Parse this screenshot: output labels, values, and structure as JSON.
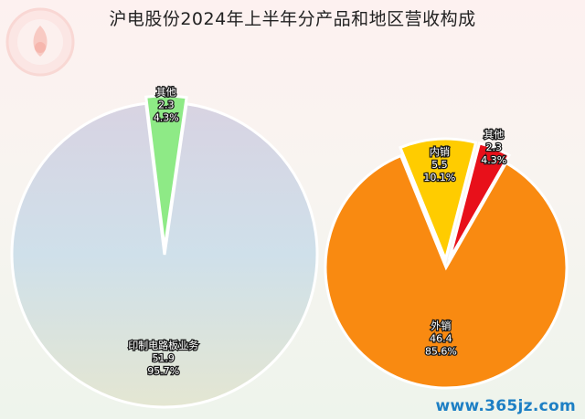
{
  "title": "沪电股份2024年上半年分产品和地区营收构成",
  "watermark": "www.365jz.com",
  "chart_data": [
    {
      "type": "pie",
      "name": "product",
      "slices": [
        {
          "label": "印制电路板业务",
          "value": 51.9,
          "percent": "95.7%",
          "color": "#cfd3de",
          "explode": false
        },
        {
          "label": "其他",
          "value": 2.3,
          "percent": "4.3%",
          "color": "#8eea86",
          "explode": true
        }
      ]
    },
    {
      "type": "pie",
      "name": "region",
      "slices": [
        {
          "label": "外销",
          "value": 46.4,
          "percent": "85.6%",
          "color": "#f98a11",
          "explode": false
        },
        {
          "label": "内销",
          "value": 5.5,
          "percent": "10.1%",
          "color": "#ffcc00",
          "explode": true
        },
        {
          "label": "其他",
          "value": 2.3,
          "percent": "4.3%",
          "color": "#e8101a",
          "explode": true
        }
      ]
    }
  ]
}
